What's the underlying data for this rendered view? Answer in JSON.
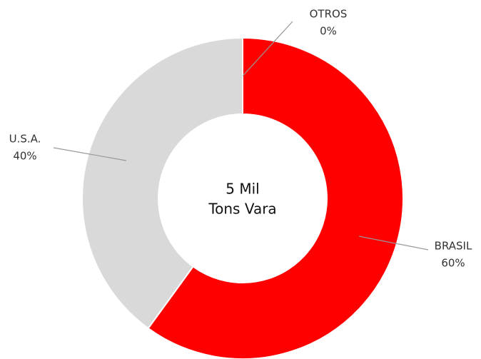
{
  "chart_data": {
    "type": "pie",
    "categories": [
      "BRASIL",
      "U.S.A.",
      "OTROS"
    ],
    "values": [
      60,
      40,
      0
    ],
    "value_labels": [
      "60%",
      "40%",
      "0%"
    ],
    "colors": [
      "#ff0000",
      "#d9d9d9",
      "#7f7f7f"
    ],
    "center_text": [
      "5 Mil",
      "Tons Vara"
    ]
  }
}
